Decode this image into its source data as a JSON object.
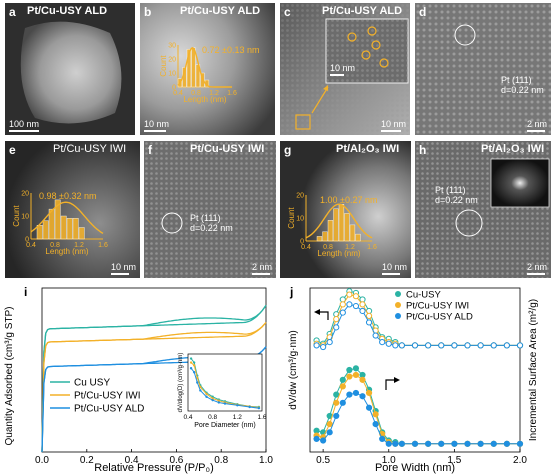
{
  "panels": {
    "a": {
      "label": "a",
      "title": "Pt/Cu-USY ALD",
      "scalebar": "100 nm"
    },
    "b": {
      "label": "b",
      "title": "Pt/Cu-USY ALD",
      "scalebar": "10 nm",
      "size_text": "0.72 ±0.13 nm",
      "hist_ylabel": "Count",
      "hist_xlabel": "Length (nm)"
    },
    "c": {
      "label": "c",
      "title": "Pt/Cu-USY ALD",
      "scalebar": "10 nm",
      "inset_scalebar": "10 nm"
    },
    "d": {
      "label": "d",
      "scalebar": "2 nm",
      "lattice_plane": "Pt (111)",
      "d_spacing": "d=0.22 nm"
    },
    "e": {
      "label": "e",
      "title": "Pt/Cu-USY IWI",
      "scalebar": "10 nm",
      "size_text": "0.98 ±0.32 nm",
      "hist_ylabel": "Count",
      "hist_xlabel": "Length (nm)"
    },
    "f": {
      "label": "f",
      "title": "Pt/Cu-USY IWI",
      "scalebar": "2 nm",
      "lattice_plane": "Pt (111)",
      "d_spacing": "d=0.22 nm"
    },
    "g": {
      "label": "g",
      "title": "Pt/Al₂O₃ IWI",
      "scalebar": "10 nm",
      "size_text": "1.00 ±0.27 nm",
      "hist_ylabel": "Count",
      "hist_xlabel": "Length (nm)"
    },
    "h": {
      "label": "h",
      "title": "Pt/Al₂O₃ IWI",
      "scalebar": "2 nm",
      "lattice_plane": "Pt (111)",
      "d_spacing": "d=0.22 nm"
    }
  },
  "chart_data": [
    {
      "type": "histogram",
      "panel": "b",
      "xlabel": "Length (nm)",
      "ylabel": "Count",
      "xlim": [
        0.4,
        1.6
      ],
      "ylim": [
        0,
        30
      ],
      "xticks": [
        "0.4",
        "0.8",
        "1.2",
        "1.6"
      ],
      "yticks": [
        "0",
        "10",
        "20",
        "30"
      ],
      "bins": [
        0.4,
        0.5,
        0.6,
        0.7,
        0.8,
        0.9,
        1.0,
        1.1
      ],
      "values": [
        6,
        14,
        27,
        28,
        16,
        10,
        5
      ],
      "fit_mean": 0.72,
      "fit_sd": 0.13,
      "fit_peak": 28
    },
    {
      "type": "histogram",
      "panel": "e",
      "xlabel": "Length (nm)",
      "ylabel": "Count",
      "xlim": [
        0.4,
        1.6
      ],
      "ylim": [
        0,
        20
      ],
      "xticks": [
        "0.4",
        "0.8",
        "1.2",
        "1.6"
      ],
      "yticks": [
        "0",
        "10",
        "20"
      ],
      "bins": [
        0.5,
        0.6,
        0.7,
        0.8,
        0.9,
        1.0,
        1.1,
        1.2,
        1.3
      ],
      "values": [
        6,
        8,
        13,
        17,
        10,
        9,
        9,
        5
      ],
      "fit_mean": 0.98,
      "fit_sd": 0.32,
      "fit_peak": 16
    },
    {
      "type": "histogram",
      "panel": "g",
      "xlabel": "Length (nm)",
      "ylabel": "Count",
      "xlim": [
        0.4,
        1.6
      ],
      "ylim": [
        0,
        20
      ],
      "xticks": [
        "0.4",
        "0.8",
        "1.2",
        "1.6"
      ],
      "yticks": [
        "0",
        "10",
        "20"
      ],
      "bins": [
        0.6,
        0.7,
        0.8,
        0.9,
        1.0,
        1.1,
        1.2,
        1.3,
        1.4
      ],
      "values": [
        2,
        4,
        9,
        14,
        16,
        12,
        7,
        3
      ],
      "fit_mean": 1.0,
      "fit_sd": 0.27,
      "fit_peak": 16
    },
    {
      "type": "line",
      "panel": "i",
      "label": "i",
      "xlabel": "Relative Pressure (P/P₀)",
      "ylabel": "Quantity Adsorbed (cm³/g STP)",
      "xlim": [
        0,
        1.0
      ],
      "xticks": [
        "0.0",
        "0.2",
        "0.4",
        "0.6",
        "0.8",
        "1.0"
      ],
      "legend": "center-left",
      "series": [
        {
          "name": "Cu USY",
          "color": "#2bb3a4",
          "offset": 0.75,
          "plateau": 0.21,
          "rise": 0.1,
          "hyst": 0.035
        },
        {
          "name": "Pt/Cu-USY IWI",
          "color": "#f3b129",
          "offset": 0.67,
          "plateau": 0.19,
          "rise": 0.08,
          "hyst": 0.03
        },
        {
          "name": "Pt/Cu-USY ALD",
          "color": "#1f8fe0",
          "offset": 0.52,
          "plateau": 0.2,
          "rise": 0.08,
          "hyst": 0.03
        }
      ],
      "inset": {
        "xlabel": "Pore Diameter (nm)",
        "ylabel": "dV/dlog(D) (cm³/g·nm)",
        "xlim": [
          0.4,
          1.6
        ],
        "xticks": [
          "0.4",
          "0.8",
          "1.2",
          "1.6"
        ],
        "series": [
          {
            "name": "Cu USY",
            "color": "#2bb3a4",
            "x": [
              0.45,
              0.5,
              0.55,
              0.6,
              0.7,
              0.8,
              0.9,
              1.0,
              1.2,
              1.4,
              1.55
            ],
            "y": [
              0.92,
              0.85,
              0.62,
              0.45,
              0.32,
              0.25,
              0.2,
              0.17,
              0.12,
              0.08,
              0.07
            ]
          },
          {
            "name": "Pt/Cu-USY IWI",
            "color": "#f3b129",
            "x": [
              0.45,
              0.5,
              0.55,
              0.6,
              0.7,
              0.8,
              0.9,
              1.0,
              1.2,
              1.4,
              1.55
            ],
            "y": [
              0.85,
              0.8,
              0.58,
              0.42,
              0.3,
              0.22,
              0.18,
              0.15,
              0.11,
              0.08,
              0.06
            ]
          },
          {
            "name": "Pt/Cu-USY ALD",
            "color": "#1f8fe0",
            "x": [
              0.45,
              0.5,
              0.55,
              0.6,
              0.7,
              0.8,
              0.9,
              1.0,
              1.2,
              1.4,
              1.55
            ],
            "y": [
              0.75,
              0.68,
              0.5,
              0.36,
              0.25,
              0.19,
              0.15,
              0.13,
              0.1,
              0.07,
              0.05
            ]
          }
        ]
      }
    },
    {
      "type": "scatter",
      "panel": "j",
      "label": "j",
      "xlabel": "Pore Width (nm)",
      "ylabel": "dV/dw (cm³/g·nm)",
      "y2label": "Incremental Surface Area (m²/g)",
      "xlim": [
        0.4,
        2.0
      ],
      "xticks": [
        "0.5",
        "1.0",
        "1.5",
        "2.0"
      ],
      "legend": "top-center",
      "legend_series": [
        "Cu-USY",
        "Pt/Cu-USY IWI",
        "Pt/Cu-USY ALD"
      ],
      "upper_open": [
        {
          "name": "Cu-USY",
          "color": "#2bb3a4",
          "x": [
            0.45,
            0.5,
            0.55,
            0.6,
            0.65,
            0.7,
            0.75,
            0.8,
            0.85,
            0.9,
            0.95,
            1.0,
            1.05,
            1.1,
            1.2,
            1.3,
            1.4,
            1.5,
            1.6,
            1.7,
            1.8,
            1.9,
            2.0
          ],
          "y": [
            0.68,
            0.66,
            0.72,
            0.84,
            0.93,
            0.98,
            0.97,
            0.93,
            0.86,
            0.76,
            0.7,
            0.69,
            0.67,
            0.65,
            0.65,
            0.65,
            0.65,
            0.65,
            0.65,
            0.65,
            0.65,
            0.65,
            0.65
          ]
        },
        {
          "name": "Pt/Cu-USY IWI",
          "color": "#f3b129",
          "x": [
            0.45,
            0.5,
            0.55,
            0.6,
            0.65,
            0.7,
            0.75,
            0.8,
            0.85,
            0.9,
            0.95,
            1.0,
            1.05,
            1.1,
            1.2,
            1.3,
            1.4,
            1.5,
            1.6,
            1.7,
            1.8,
            1.9,
            2.0
          ],
          "y": [
            0.66,
            0.65,
            0.7,
            0.81,
            0.9,
            0.96,
            0.95,
            0.9,
            0.83,
            0.74,
            0.69,
            0.67,
            0.66,
            0.65,
            0.65,
            0.65,
            0.65,
            0.65,
            0.65,
            0.65,
            0.65,
            0.65,
            0.65
          ]
        },
        {
          "name": "Pt/Cu-USY ALD",
          "color": "#1f8fe0",
          "x": [
            0.45,
            0.5,
            0.55,
            0.6,
            0.65,
            0.7,
            0.75,
            0.8,
            0.85,
            0.9,
            0.95,
            1.0,
            1.05,
            1.1,
            1.2,
            1.3,
            1.4,
            1.5,
            1.6,
            1.7,
            1.8,
            1.9,
            2.0
          ],
          "y": [
            0.65,
            0.64,
            0.67,
            0.76,
            0.85,
            0.9,
            0.89,
            0.86,
            0.79,
            0.71,
            0.67,
            0.66,
            0.65,
            0.65,
            0.65,
            0.65,
            0.65,
            0.65,
            0.65,
            0.65,
            0.65,
            0.65,
            0.65
          ]
        }
      ],
      "lower_filled": [
        {
          "name": "Cu-USY",
          "color": "#2bb3a4",
          "x": [
            0.45,
            0.5,
            0.55,
            0.6,
            0.65,
            0.7,
            0.75,
            0.8,
            0.85,
            0.9,
            0.95,
            1.0,
            1.05,
            1.1,
            1.2,
            1.3,
            1.4,
            1.5,
            1.6,
            1.7,
            1.8,
            1.9,
            2.0
          ],
          "y": [
            0.13,
            0.12,
            0.22,
            0.35,
            0.44,
            0.5,
            0.51,
            0.47,
            0.38,
            0.25,
            0.12,
            0.07,
            0.06,
            0.05,
            0.05,
            0.05,
            0.05,
            0.05,
            0.05,
            0.05,
            0.05,
            0.05,
            0.05
          ]
        },
        {
          "name": "Pt/Cu-USY IWI",
          "color": "#f3b129",
          "x": [
            0.45,
            0.5,
            0.55,
            0.6,
            0.65,
            0.7,
            0.75,
            0.8,
            0.85,
            0.9,
            0.95,
            1.0,
            1.05,
            1.1,
            1.2,
            1.3,
            1.4,
            1.5,
            1.6,
            1.7,
            1.8,
            1.9,
            2.0
          ],
          "y": [
            0.1,
            0.09,
            0.17,
            0.3,
            0.4,
            0.46,
            0.47,
            0.44,
            0.36,
            0.23,
            0.11,
            0.06,
            0.05,
            0.05,
            0.05,
            0.05,
            0.05,
            0.05,
            0.05,
            0.05,
            0.05,
            0.05,
            0.05
          ]
        },
        {
          "name": "Pt/Cu-USY ALD",
          "color": "#1f8fe0",
          "x": [
            0.45,
            0.5,
            0.55,
            0.6,
            0.65,
            0.7,
            0.75,
            0.8,
            0.85,
            0.9,
            0.95,
            1.0,
            1.05,
            1.1,
            1.2,
            1.3,
            1.4,
            1.5,
            1.6,
            1.7,
            1.8,
            1.9,
            2.0
          ],
          "y": [
            0.08,
            0.07,
            0.12,
            0.22,
            0.3,
            0.35,
            0.36,
            0.34,
            0.27,
            0.17,
            0.08,
            0.05,
            0.05,
            0.05,
            0.05,
            0.05,
            0.05,
            0.05,
            0.05,
            0.05,
            0.05,
            0.05,
            0.05
          ]
        }
      ]
    }
  ],
  "colors": {
    "gold": "#f3b129",
    "teal": "#2bb3a4",
    "blue": "#1f8fe0"
  }
}
